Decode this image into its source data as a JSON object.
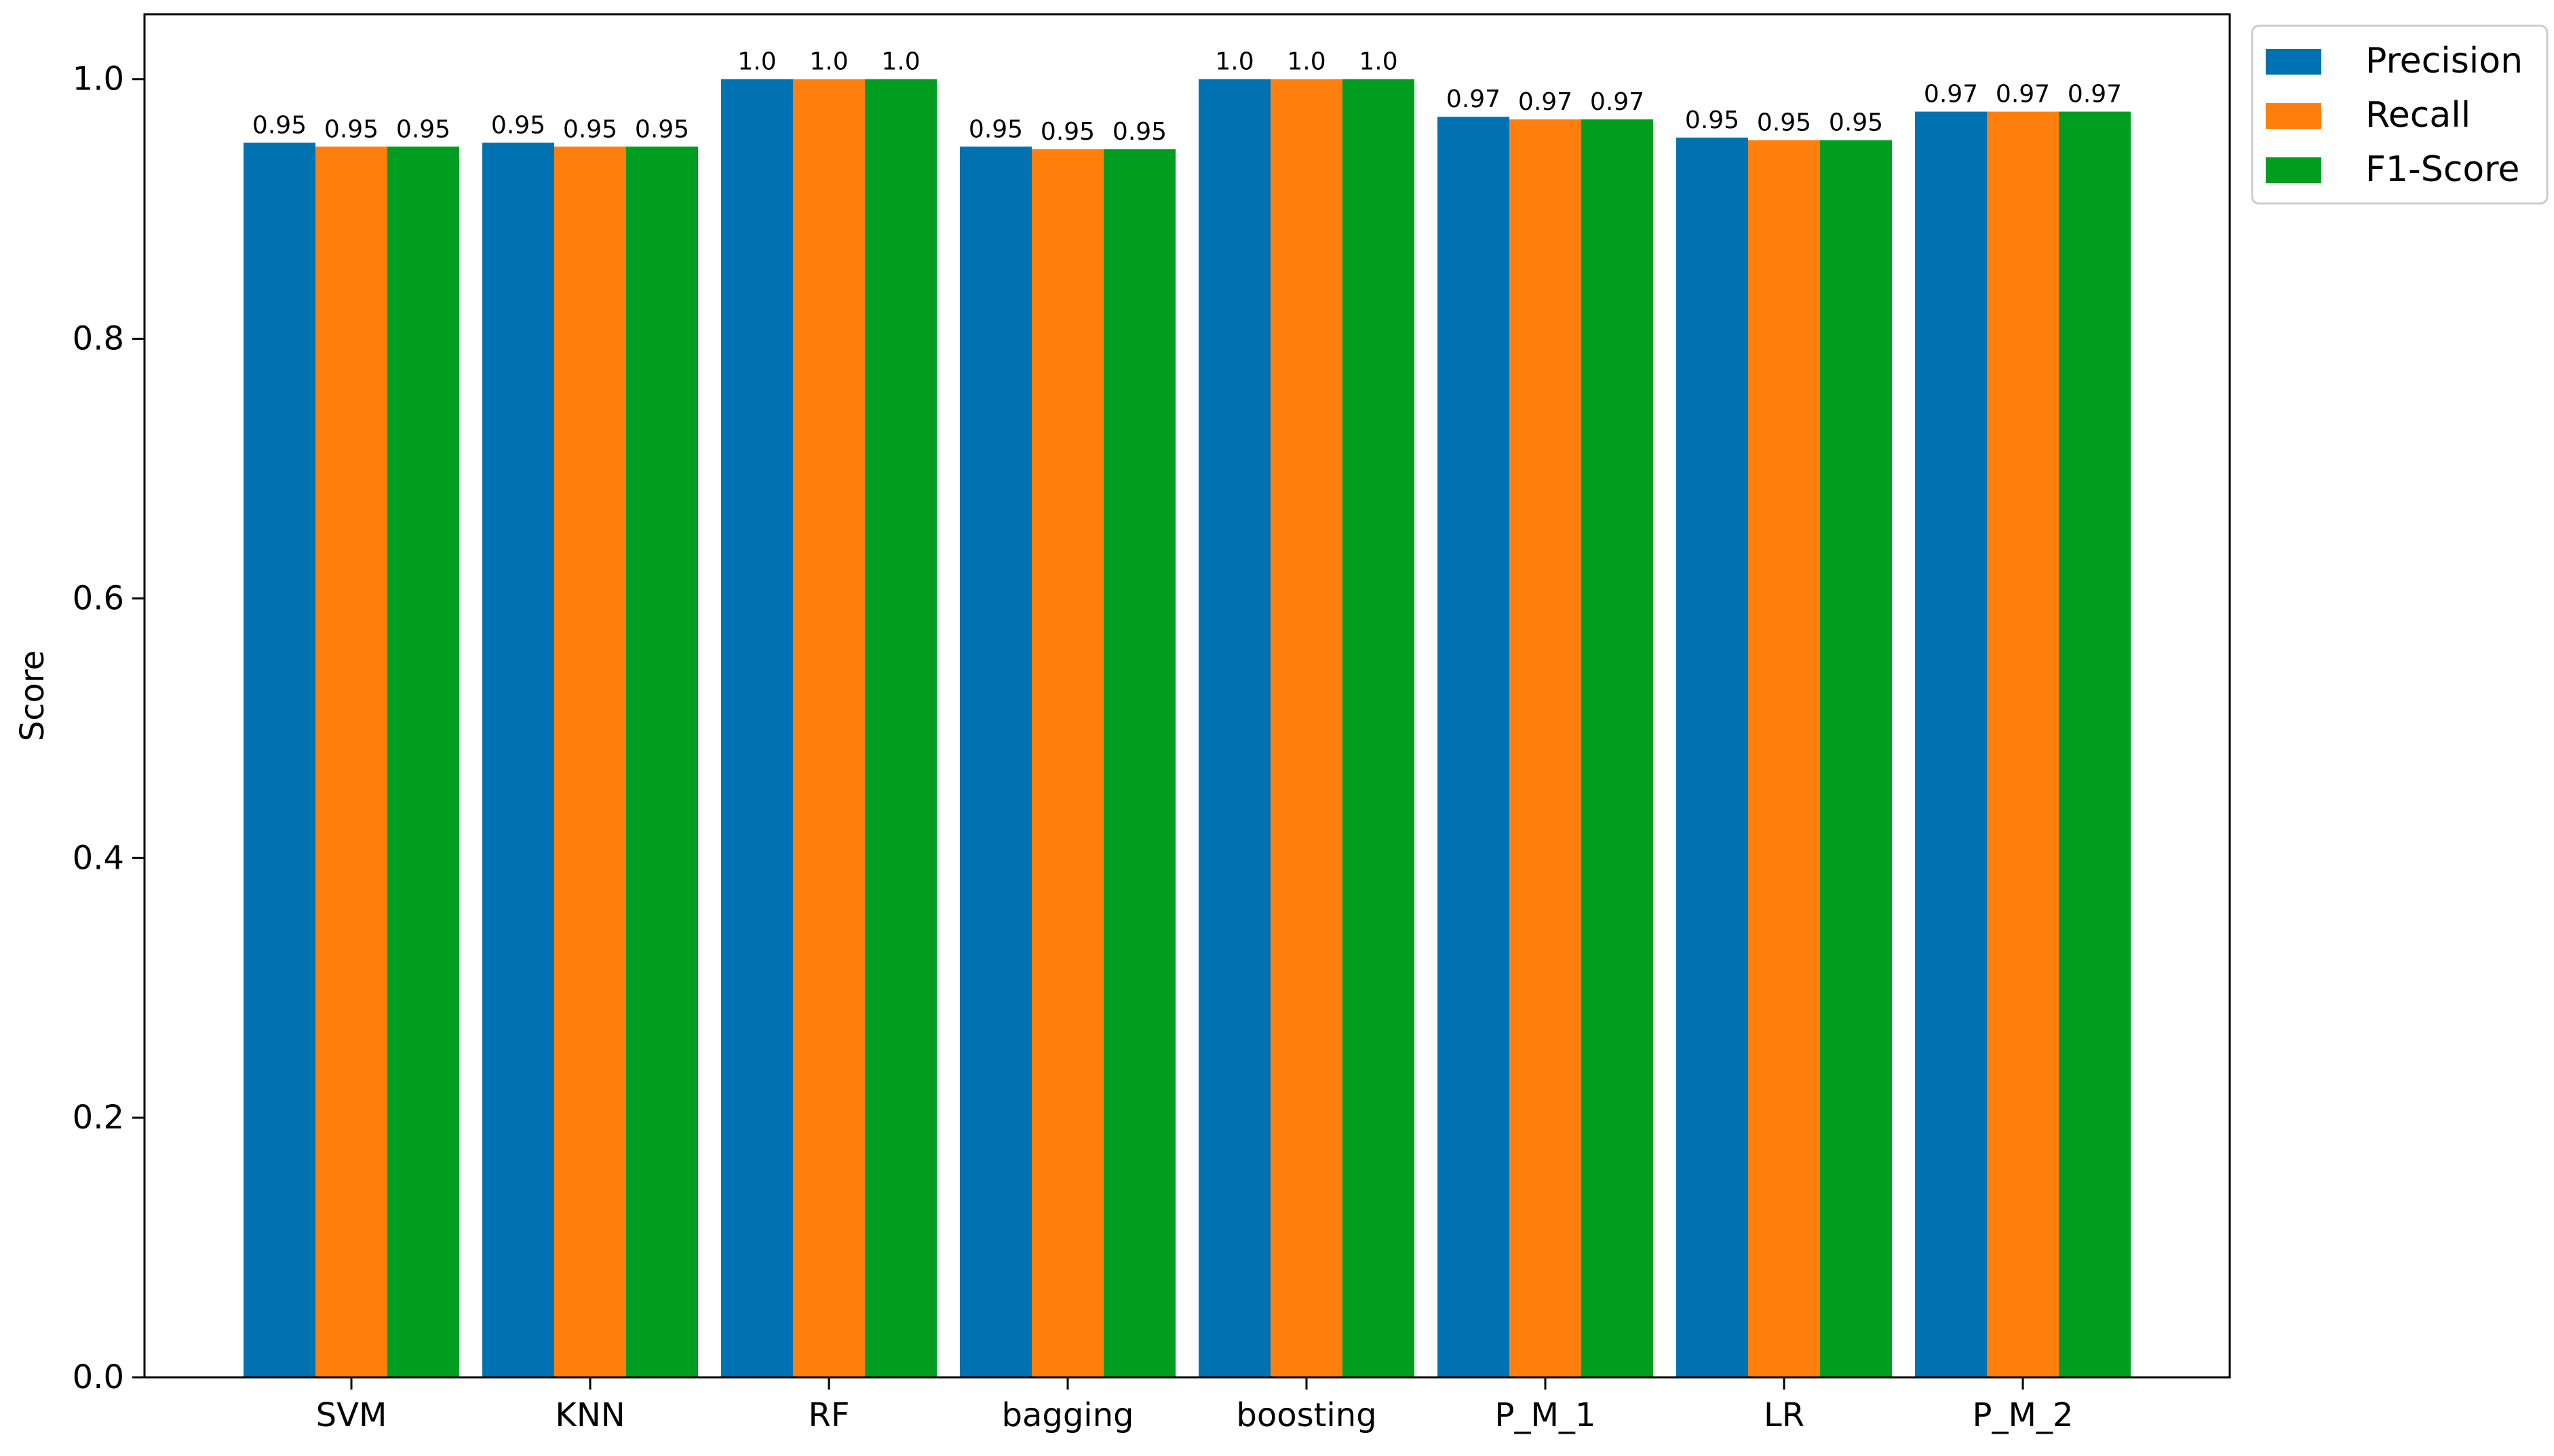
{
  "chart_data": {
    "type": "bar",
    "categories": [
      "SVM",
      "KNN",
      "RF",
      "bagging",
      "boosting",
      "P_M_1",
      "LR",
      "P_M_2"
    ],
    "series": [
      {
        "name": "Precision",
        "color": "#0072b2",
        "values": [
          0.951,
          0.951,
          1.0,
          0.948,
          1.0,
          0.971,
          0.955,
          0.975
        ],
        "labels": [
          "0.95",
          "0.95",
          "1.0",
          "0.95",
          "1.0",
          "0.97",
          "0.95",
          "0.97"
        ]
      },
      {
        "name": "Recall",
        "color": "#ff7f0e",
        "values": [
          0.948,
          0.948,
          1.0,
          0.946,
          1.0,
          0.969,
          0.953,
          0.975
        ],
        "labels": [
          "0.95",
          "0.95",
          "1.0",
          "0.95",
          "1.0",
          "0.97",
          "0.95",
          "0.97"
        ]
      },
      {
        "name": "F1-Score",
        "color": "#009e20",
        "values": [
          0.948,
          0.948,
          1.0,
          0.946,
          1.0,
          0.969,
          0.953,
          0.975
        ],
        "labels": [
          "0.95",
          "0.95",
          "1.0",
          "0.95",
          "1.0",
          "0.97",
          "0.95",
          "0.97"
        ]
      }
    ],
    "title": "",
    "xlabel": "",
    "ylabel": "Score",
    "ylim": [
      0,
      1.05
    ],
    "yticks": [
      0.0,
      0.2,
      0.4,
      0.6,
      0.8,
      1.0
    ],
    "ytick_labels": [
      "0.0",
      "0.2",
      "0.4",
      "0.6",
      "0.8",
      "1.0"
    ],
    "grid": false,
    "legend_position": "outside-top-right"
  }
}
